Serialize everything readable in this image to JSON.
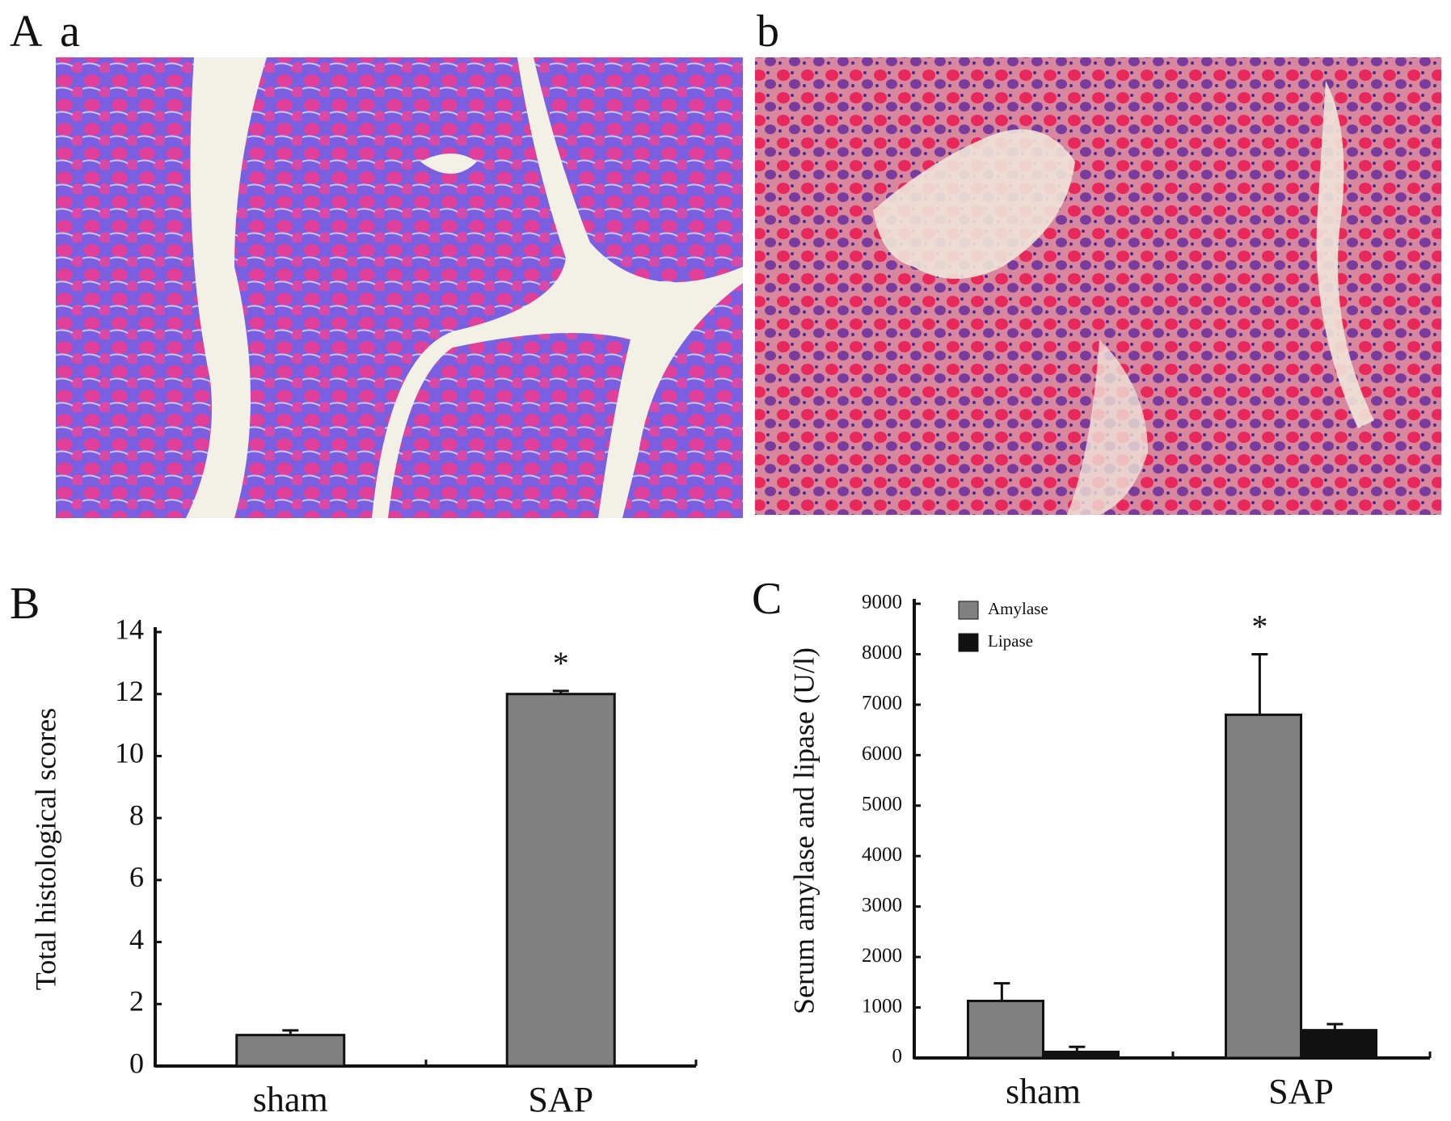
{
  "panel_labels": {
    "A": "A",
    "a": "a",
    "b": "b",
    "B": "B",
    "C": "C"
  },
  "chart_data": [
    {
      "type": "bar",
      "ylabel": "Total histological scores",
      "categories": [
        "sham",
        "SAP"
      ],
      "series": [
        {
          "name": null,
          "color": "#808080",
          "values": [
            1.0,
            12.0
          ],
          "errors": [
            0.15,
            0.1
          ]
        }
      ],
      "ylim": [
        0,
        14
      ],
      "yticks": [
        0,
        2,
        4,
        6,
        8,
        10,
        12,
        14
      ],
      "annotations": [
        {
          "text": "*",
          "category": "SAP",
          "series": 0
        }
      ]
    },
    {
      "type": "bar",
      "ylabel": "Serum amylase and lipase (U/l)",
      "categories": [
        "sham",
        "SAP"
      ],
      "series": [
        {
          "name": "Amylase",
          "color": "#808080",
          "values": [
            1130,
            6800
          ],
          "errors": [
            350,
            1200
          ]
        },
        {
          "name": "Lipase",
          "color": "#111111",
          "values": [
            120,
            550
          ],
          "errors": [
            100,
            120
          ]
        }
      ],
      "ylim": [
        0,
        9000
      ],
      "yticks": [
        0,
        1000,
        2000,
        3000,
        4000,
        5000,
        6000,
        7000,
        8000,
        9000
      ],
      "legend": "top-left",
      "annotations": [
        {
          "text": "*",
          "category": "SAP",
          "series": 0
        }
      ]
    }
  ]
}
